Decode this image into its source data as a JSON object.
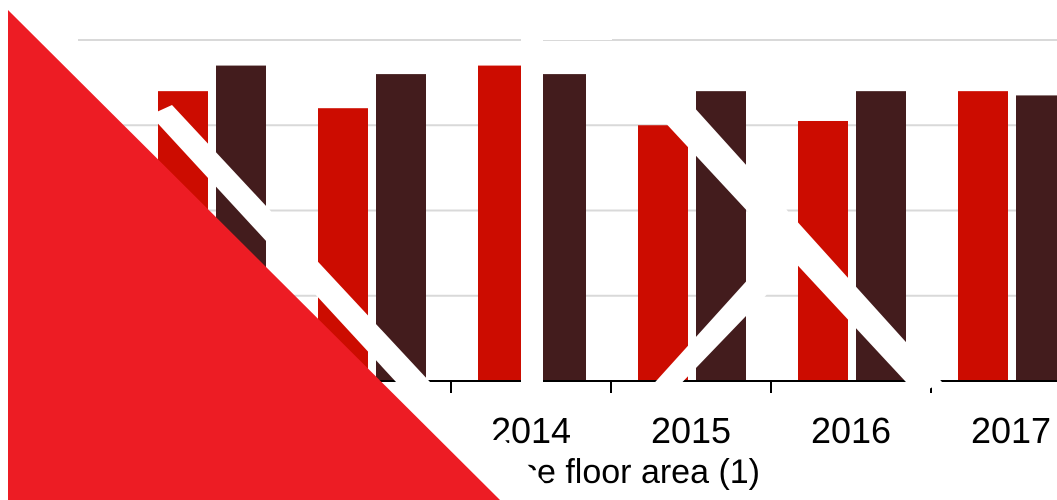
{
  "chart_data": {
    "type": "bar",
    "title": "",
    "xlabel": "",
    "ylabel": "",
    "categories": [
      "",
      "",
      "2014",
      "2015",
      "2016",
      "2017"
    ],
    "series": [
      {
        "values": [
          3.4,
          3.2,
          3.7,
          3.0,
          3.05,
          3.4
        ]
      },
      {
        "values": [
          3.7,
          3.6,
          3.6,
          3.4,
          3.4,
          3.35
        ]
      }
    ],
    "ylim": [
      0,
      4
    ],
    "grid": true,
    "legend": "bottom",
    "colors": {
      "series_1": "#cc0c00",
      "series_2": "#431c1d",
      "grid": "#d9d9d9",
      "axis": "#000000",
      "overlay": "#ed1c24"
    }
  },
  "legend_label": "ce floor area (1)"
}
